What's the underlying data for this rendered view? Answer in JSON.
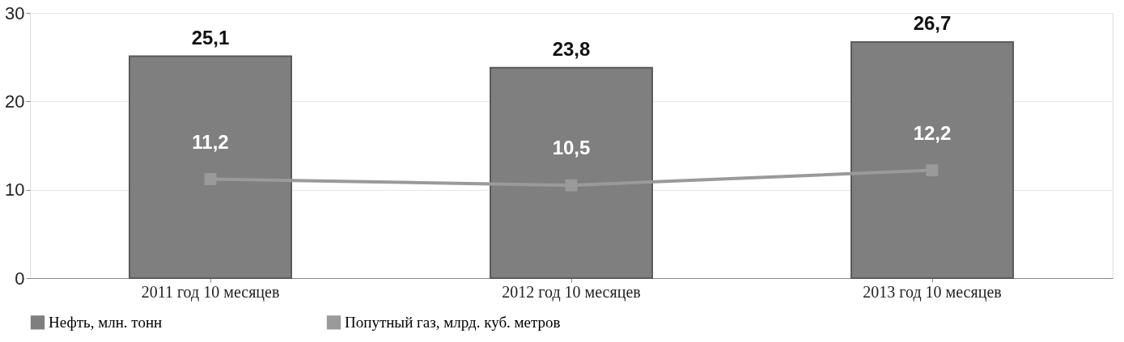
{
  "chart_data": {
    "type": "bar",
    "categories": [
      "2011 год 10 месяцев",
      "2012 год 10 месяцев",
      "2013 год 10 месяцев"
    ],
    "series": [
      {
        "name": "Нефть, млн. тонн",
        "color": "#7f7f7f",
        "values": [
          25.1,
          23.8,
          26.7
        ],
        "value_labels": [
          "25,1",
          "23,8",
          "26,7"
        ]
      },
      {
        "name": "Попутный газ, млрд. куб. метров",
        "type": "line",
        "color": "#9a9a9a",
        "values": [
          11.2,
          10.5,
          12.2
        ],
        "value_labels": [
          "11,2",
          "10,5",
          "12,2"
        ]
      }
    ],
    "ylim": [
      0,
      30
    ],
    "yticks": [
      0,
      10,
      20,
      30
    ],
    "grid": "y",
    "legend": "bottom",
    "marker": "square"
  }
}
